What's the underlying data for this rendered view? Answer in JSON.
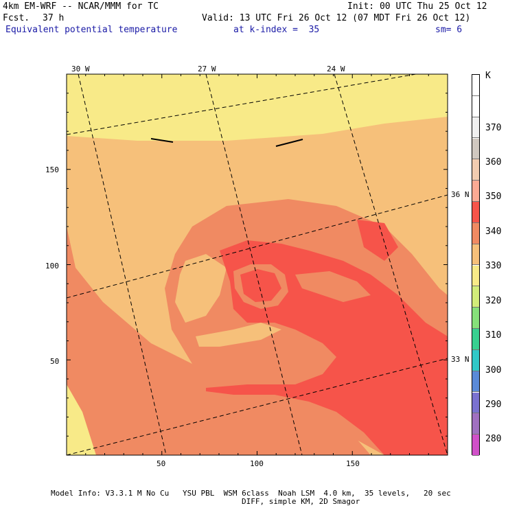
{
  "header": {
    "model": "4km EM-WRF -- NCAR/MMM for TC",
    "fcst_label": "Fcst.",
    "fcst_value": "37 h",
    "init": "Init: 00 UTC Thu 25 Oct 12",
    "valid": "Valid: 13 UTC Fri 26 Oct 12 (07 MDT Fri 26 Oct 12)",
    "field": "Equivalent potential temperature",
    "level": "at k-index =  35",
    "smoothing": "sm= 6"
  },
  "map": {
    "top_lon_labels": [
      "30 W",
      "27 W",
      "24 W"
    ],
    "right_lat_labels": [
      "36 N",
      "33 N"
    ],
    "x_ticks": [
      "50",
      "100",
      "150"
    ],
    "y_ticks": [
      "150",
      "100",
      "50"
    ],
    "x_tick_values": [
      50,
      100,
      150
    ],
    "y_tick_values": [
      150,
      100,
      50
    ],
    "grid_range_x": [
      0,
      200
    ],
    "grid_range_y": [
      0,
      200
    ]
  },
  "colorbar": {
    "unit": "K",
    "labels": [
      "370",
      "360",
      "350",
      "340",
      "330",
      "320",
      "310",
      "300",
      "290",
      "280"
    ],
    "colors": [
      "#ffffff",
      "#ffffff",
      "#f0f0f0",
      "#d0c8c0",
      "#f2ccb0",
      "#fbaa94",
      "#f6544a",
      "#f08a62",
      "#f6c07a",
      "#f8ea88",
      "#d2ec7a",
      "#86e07a",
      "#38d090",
      "#30c8c8",
      "#5a8ad8",
      "#7a72d0",
      "#a070c0",
      "#d050c8"
    ]
  },
  "footer": {
    "line1": "Model Info: V3.3.1 M No Cu   YSU PBL  WSM 6class  Noah LSM  4.0 km,  35 levels,   20 sec",
    "line2": "DIFF, simple KM, 2D Smagor"
  }
}
